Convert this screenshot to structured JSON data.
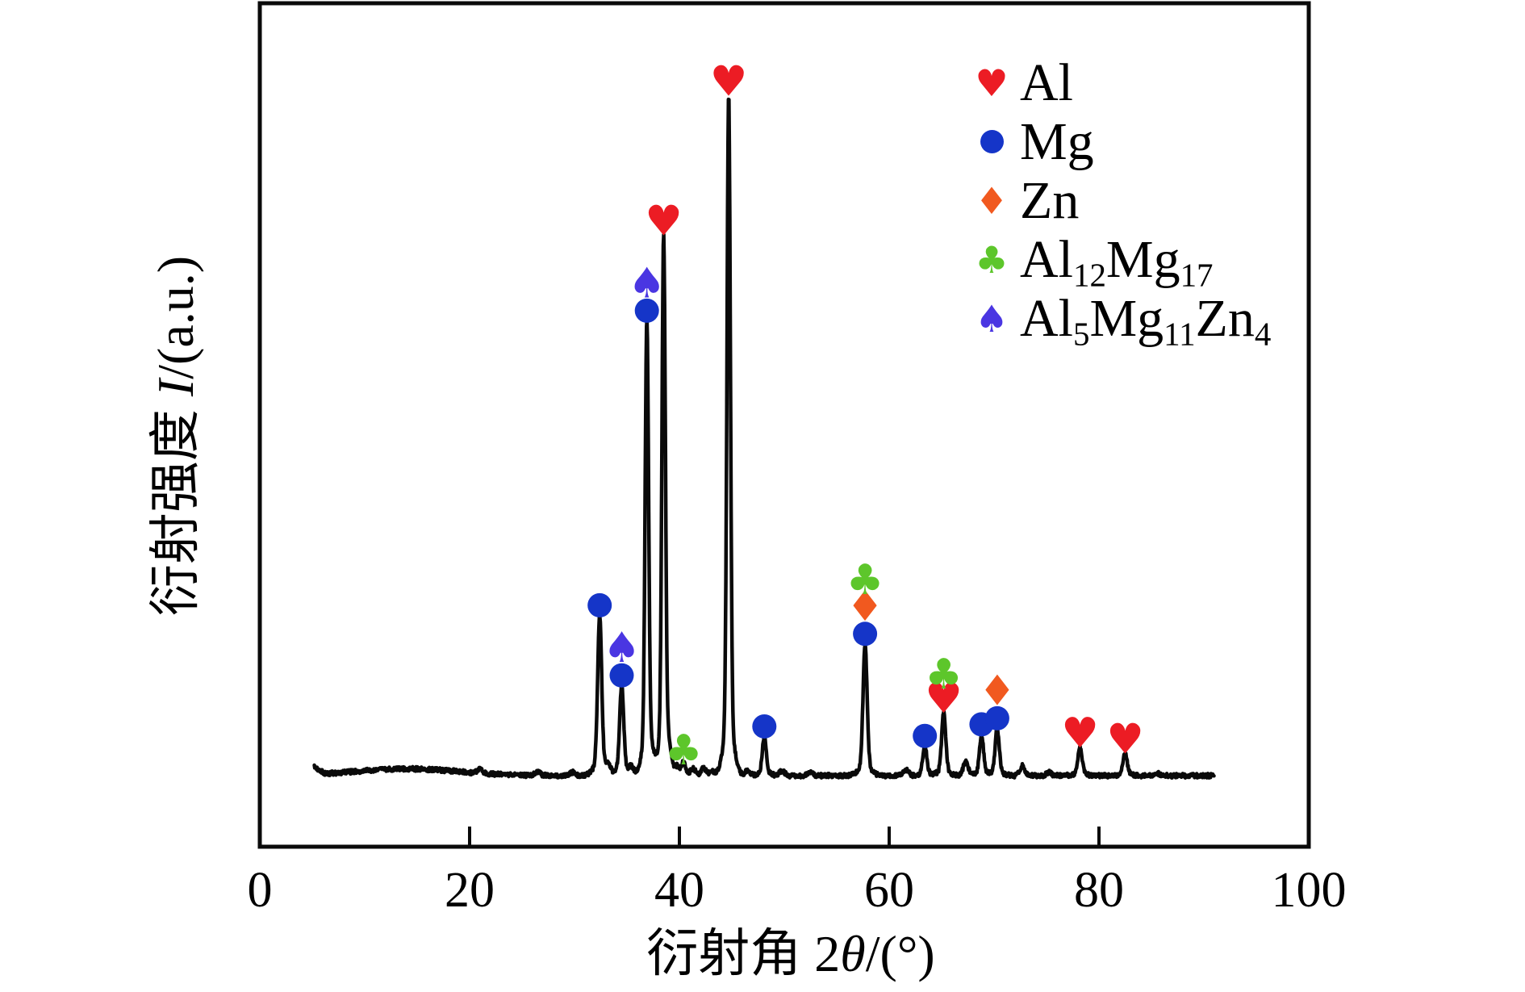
{
  "figure": {
    "background": "#ffffff",
    "trace_color": "#0a0a0a",
    "frame_color": "#0a0a0a"
  },
  "chart_data": {
    "type": "line",
    "chart_kind": "XRD diffraction pattern",
    "title": "",
    "xlabel": "衍射角 2θ/(°)",
    "ylabel": "衍射强度 I/(a.u.)",
    "xlabel_parts": [
      {
        "t": "衍射角 2"
      },
      {
        "t": "θ",
        "italic": true
      },
      {
        "t": "/(°)"
      }
    ],
    "ylabel_parts": [
      {
        "t": "衍射强度 "
      },
      {
        "t": "I",
        "italic": true
      },
      {
        "t": "/(a.u.)"
      }
    ],
    "xlim": [
      0,
      100
    ],
    "x_ticks": [
      0,
      20,
      40,
      60,
      80,
      100
    ],
    "y_axis_note": "arbitrary units, no y ticks shown",
    "grid": false,
    "legend_position": "upper-right",
    "legend_order": [
      "Al",
      "Mg",
      "Zn",
      "Al12Mg17",
      "Al5Mg11Zn4"
    ],
    "phases": {
      "Al": {
        "glyph": "♥",
        "shape": "heart",
        "color": "#EC1C24",
        "label_parts": [
          {
            "t": "Al"
          }
        ]
      },
      "Mg": {
        "glyph": "●",
        "shape": "circle",
        "color": "#1535C8",
        "label_parts": [
          {
            "t": "Mg"
          }
        ]
      },
      "Zn": {
        "glyph": "♦",
        "shape": "diamond",
        "color": "#F1591F",
        "label_parts": [
          {
            "t": "Zn"
          }
        ]
      },
      "Al12Mg17": {
        "glyph": "♣",
        "shape": "club",
        "color": "#5DC62B",
        "label_parts": [
          {
            "t": "Al"
          },
          {
            "t": "12",
            "sub": true
          },
          {
            "t": "Mg"
          },
          {
            "t": "17",
            "sub": true
          }
        ]
      },
      "Al5Mg11Zn4": {
        "glyph": "♠",
        "shape": "spade",
        "color": "#4A36E2",
        "label_parts": [
          {
            "t": "Al"
          },
          {
            "t": "5",
            "sub": true
          },
          {
            "t": "Mg"
          },
          {
            "t": "11",
            "sub": true
          },
          {
            "t": "Zn"
          },
          {
            "t": "4",
            "sub": true
          }
        ]
      }
    },
    "series": [
      {
        "name": "XRD trace",
        "x_start": 5.2,
        "x_end": 91.0,
        "intensity_scale": "normalized, strongest peak = 100",
        "peaks": [
          {
            "two_theta": 32.4,
            "intensity": 23.5,
            "phases": [
              "Mg"
            ]
          },
          {
            "two_theta": 34.5,
            "intensity": 13.2,
            "phases": [
              "Mg",
              "Al5Mg11Zn4"
            ]
          },
          {
            "two_theta": 36.9,
            "intensity": 66.8,
            "phases": [
              "Mg",
              "Al5Mg11Zn4"
            ]
          },
          {
            "two_theta": 38.5,
            "intensity": 79.5,
            "phases": [
              "Al"
            ]
          },
          {
            "two_theta": 40.4,
            "intensity": 2.1,
            "phases": [
              "Al12Mg17"
            ]
          },
          {
            "two_theta": 44.7,
            "intensity": 100.0,
            "phases": [
              "Al"
            ]
          },
          {
            "two_theta": 48.1,
            "intensity": 5.7,
            "phases": [
              "Mg"
            ]
          },
          {
            "two_theta": 57.7,
            "intensity": 19.3,
            "phases": [
              "Mg",
              "Zn",
              "Al12Mg17"
            ]
          },
          {
            "two_theta": 63.4,
            "intensity": 4.3,
            "phases": [
              "Mg"
            ]
          },
          {
            "two_theta": 65.2,
            "intensity": 9.3,
            "phases": [
              "Al",
              "Al12Mg17"
            ]
          },
          {
            "two_theta": 68.8,
            "intensity": 6.0,
            "phases": [
              "Mg"
            ]
          },
          {
            "two_theta": 70.3,
            "intensity": 6.9,
            "phases": [
              "Mg",
              "Zn"
            ]
          },
          {
            "two_theta": 78.2,
            "intensity": 4.2,
            "phases": [
              "Al"
            ]
          },
          {
            "two_theta": 82.5,
            "intensity": 3.3,
            "phases": [
              "Al"
            ]
          }
        ],
        "minor_peaks": [
          [
            21.0,
            0.6
          ],
          [
            26.5,
            0.5
          ],
          [
            29.8,
            0.5
          ],
          [
            33.2,
            1.2
          ],
          [
            35.4,
            1.1
          ],
          [
            37.3,
            1.3
          ],
          [
            39.0,
            1.9
          ],
          [
            39.8,
            1.2
          ],
          [
            41.3,
            1.0
          ],
          [
            42.3,
            1.1
          ],
          [
            43.1,
            0.7
          ],
          [
            46.5,
            0.8
          ],
          [
            49.8,
            0.7
          ],
          [
            52.5,
            0.4
          ],
          [
            61.6,
            0.9
          ],
          [
            67.3,
            2.0
          ],
          [
            72.7,
            1.5
          ],
          [
            75.2,
            0.5
          ],
          [
            85.5,
            0.4
          ]
        ],
        "baseline_hump": {
          "center": 14,
          "sigma": 5,
          "height": 1.0
        }
      }
    ]
  }
}
